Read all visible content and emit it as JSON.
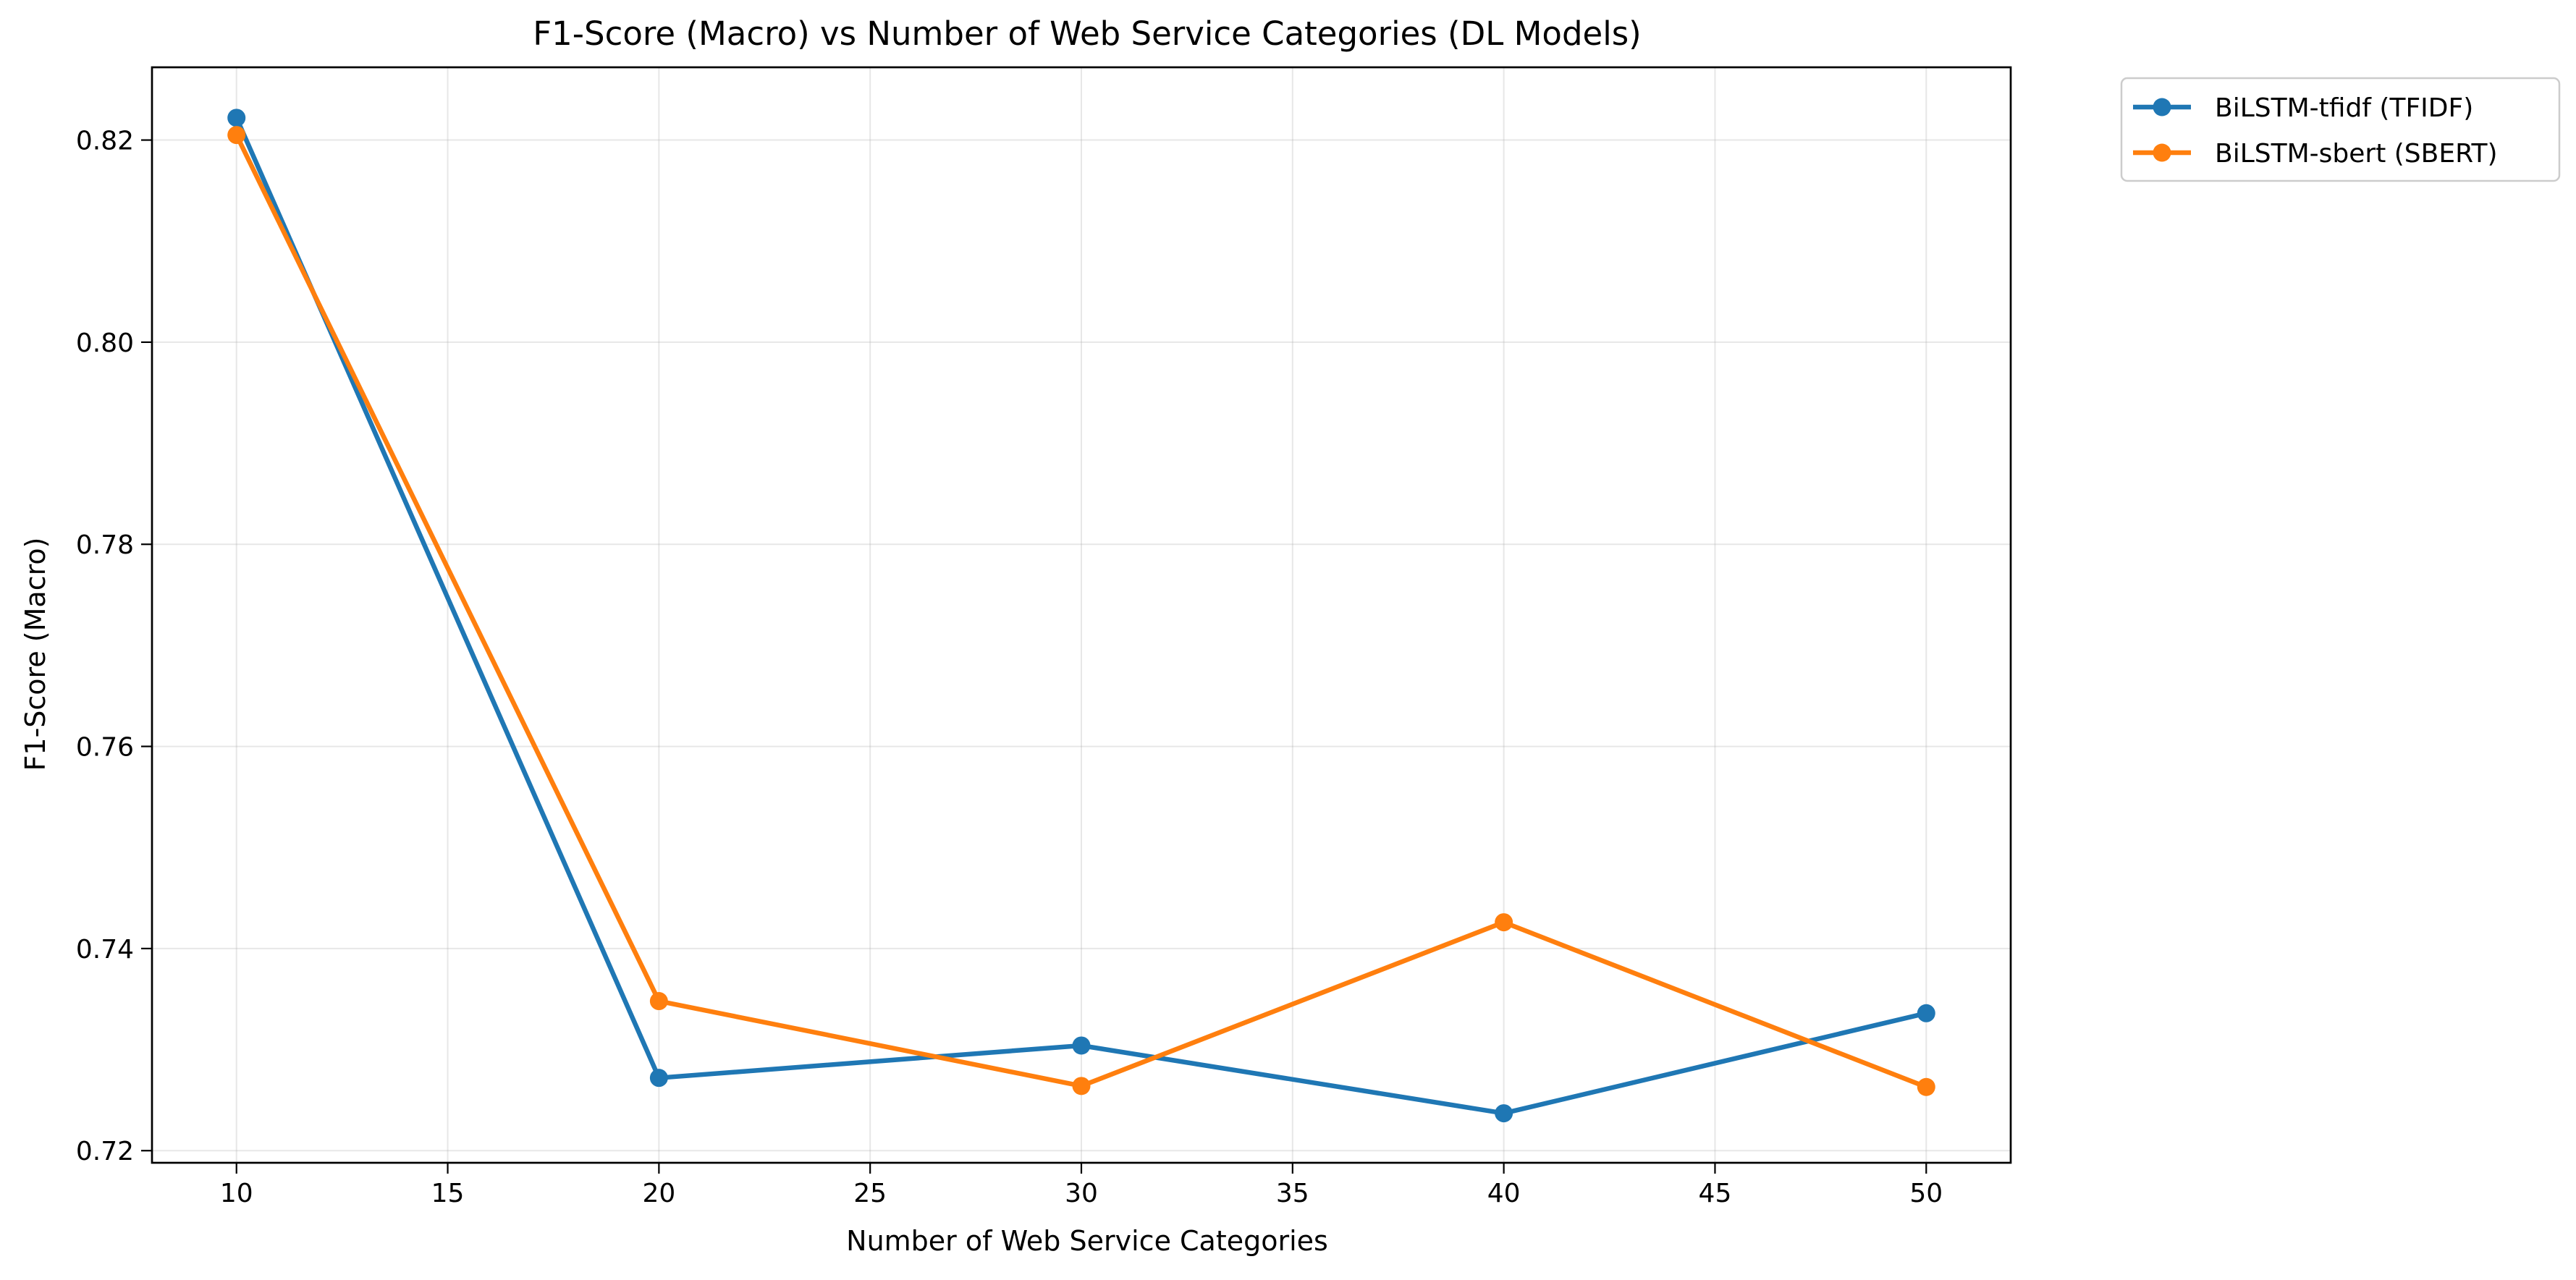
{
  "chart_data": {
    "type": "line",
    "title": "F1-Score (Macro) vs Number of Web Service Categories (DL Models)",
    "xlabel": "Number of Web Service Categories",
    "ylabel": "F1-Score (Macro)",
    "xlim": [
      8,
      52
    ],
    "ylim": [
      0.7188,
      0.8272
    ],
    "xticks": [
      10,
      15,
      20,
      25,
      30,
      35,
      40,
      45,
      50
    ],
    "xtick_labels": [
      "10",
      "15",
      "20",
      "25",
      "30",
      "35",
      "40",
      "45",
      "50"
    ],
    "yticks": [
      0.72,
      0.74,
      0.76,
      0.78,
      0.8,
      0.82
    ],
    "ytick_labels": [
      "0.72",
      "0.74",
      "0.76",
      "0.78",
      "0.80",
      "0.82"
    ],
    "grid": true,
    "legend_position": "outside-top-right",
    "x": [
      10,
      20,
      30,
      40,
      50
    ],
    "series": [
      {
        "name": "BiLSTM-tfidf (TFIDF)",
        "color": "#1f77b4",
        "values": [
          0.8222,
          0.7272,
          0.7304,
          0.7237,
          0.7336
        ]
      },
      {
        "name": "BiLSTM-sbert (SBERT)",
        "color": "#ff7f0e",
        "values": [
          0.8205,
          0.7348,
          0.7264,
          0.7426,
          0.7263
        ]
      }
    ]
  }
}
